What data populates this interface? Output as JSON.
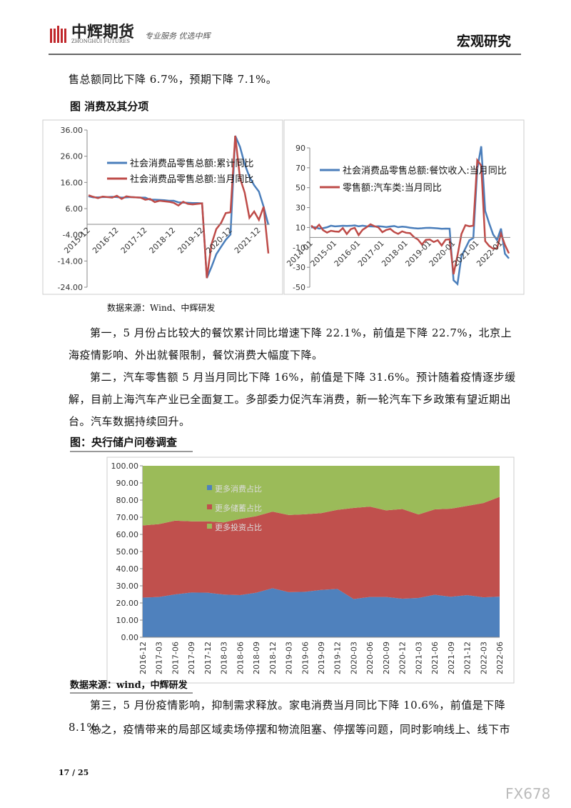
{
  "header": {
    "logo_cn": "中辉期货",
    "logo_en": "ZHONGHUI FUTURES",
    "slogan": "专业服务 优选中辉",
    "section": "宏观研究"
  },
  "paragraphs": [
    "售总额同比下降 6.7%，预期下降 7.1%。",
    "第一，5 月份占比较大的餐饮累计同比增速下降 22.1%，前值是下降 22.7%，北京上海疫情影响、外出就餐限制，餐饮消费大幅度下降。",
    "第二，汽车零售额 5 月当月同比下降 16%，前值是下降 31.6%。预计随着疫情逐步缓解，目前上海汽车产业已全面复工。多部委力促汽车消费，新一轮汽车下乡政策有望近期出台。汽车数据持续回升。",
    "第三，5 月份疫情影响，抑制需求释放。家电消费当月同比下降 10.6%，前值是下降 8.1%。",
    "总之，疫情带来的局部区域卖场停摆和物流阻塞、停摆等问题，同时影响线上、线下市"
  ],
  "figure1_title": "图  消费及其分项",
  "figure1_source": "数据来源：Wind、中辉研发",
  "figure2_title": "图：央行储户问卷调查",
  "figure2_source": "数据来源：wind，中辉研发",
  "footer": {
    "page": "17 / 25",
    "watermark": "FX678"
  },
  "chart_data": [
    {
      "type": "line",
      "categories": [
        "2015-12",
        null,
        null,
        null,
        null,
        null,
        "2016-12",
        null,
        null,
        null,
        null,
        null,
        "2017-12",
        null,
        null,
        null,
        null,
        null,
        "2018-12",
        null,
        null,
        null,
        null,
        null,
        "2019-12",
        null,
        null,
        null,
        null,
        null,
        "2020-12",
        null,
        null,
        null,
        null,
        null,
        "2021-12",
        null,
        null
      ],
      "series": [
        {
          "name": "社会消费品零售总额:累计同比",
          "color": "#4a7ebb",
          "values": [
            10.7,
            10.3,
            10.3,
            10.4,
            10.4,
            10.5,
            10.4,
            10.2,
            10.3,
            10.4,
            10.3,
            10.2,
            10.2,
            9.4,
            9.4,
            9.3,
            9.2,
            9.0,
            9.0,
            8.4,
            8.3,
            8.2,
            8.1,
            8.1,
            8.0,
            -20.5,
            -16.2,
            -11.4,
            -8.6,
            -5.9,
            -3.9,
            33.8,
            29.6,
            23.0,
            18.1,
            14.9,
            12.5,
            6.7,
            -0.2
          ]
        },
        {
          "name": "社会消费品零售总额:当月同比",
          "color": "#be4b48",
          "values": [
            11.1,
            10.5,
            10.0,
            10.6,
            10.4,
            10.2,
            10.9,
            9.7,
            10.7,
            10.4,
            10.3,
            10.2,
            9.4,
            9.7,
            8.5,
            9.0,
            8.8,
            8.6,
            8.2,
            7.2,
            8.6,
            7.8,
            7.6,
            7.8,
            8.0,
            -20.5,
            -7.5,
            -1.8,
            0.5,
            4.3,
            4.6,
            33.8,
            17.7,
            12.1,
            2.5,
            4.9,
            1.7,
            6.7,
            -11.1
          ]
        }
      ],
      "ylim": [
        -24,
        36
      ],
      "yticks": [
        {
          "value": -24,
          "label": "-24.00"
        },
        {
          "value": -14,
          "label": "-14.00"
        },
        {
          "value": -4,
          "label": "-4.00"
        },
        {
          "value": 6,
          "label": "6.00"
        },
        {
          "value": 16,
          "label": "16.00"
        },
        {
          "value": 26,
          "label": "26.00"
        },
        {
          "value": 36,
          "label": "36.00"
        }
      ]
    },
    {
      "type": "line",
      "categories": [
        "2014-01",
        null,
        null,
        null,
        null,
        null,
        "2015-01",
        null,
        null,
        null,
        null,
        null,
        "2016-01",
        null,
        null,
        null,
        null,
        null,
        "2017-01",
        null,
        null,
        null,
        null,
        null,
        "2018-01",
        null,
        null,
        null,
        null,
        null,
        "2019-01",
        null,
        null,
        null,
        null,
        null,
        "2020-01",
        null,
        null,
        null,
        null,
        null,
        "2021-01",
        null,
        null,
        null,
        null,
        null,
        "2022-01",
        null,
        null
      ],
      "series": [
        {
          "name": "社会消费品零售总额:餐饮收入:当月同比",
          "color": "#4a7ebb",
          "values": [
            10,
            10.3,
            8.9,
            9.3,
            10.2,
            11.8,
            11.1,
            11.4,
            11.7,
            11.6,
            11.7,
            12.1,
            11.2,
            11.8,
            11.2,
            11.1,
            10.9,
            11.3,
            10.9,
            10.4,
            11.0,
            11.5,
            10.3,
            10.8,
            10.5,
            9.8,
            9.3,
            9.0,
            9.2,
            9.6,
            9.7,
            9.4,
            9.1,
            8.7,
            8.9,
            8.8,
            -43,
            -46.8,
            -18.9,
            -11,
            -2.9,
            -0.6,
            68.9,
            91.6,
            26.6,
            14.3,
            3.1,
            -2.7,
            8.9,
            -16.4,
            -21.1
          ]
        },
        {
          "name": "零售额:汽车类:当月同比",
          "color": "#be4b48",
          "values": [
            12,
            8.6,
            12.8,
            7.3,
            4.9,
            6.7,
            6,
            5.7,
            9.4,
            3.5,
            8.3,
            9.7,
            2.4,
            7.7,
            10.2,
            13.2,
            11.3,
            10.1,
            5.3,
            7.6,
            8.6,
            5.4,
            3.6,
            6.1,
            4.7,
            4.3,
            0.3,
            -2.1,
            -7.1,
            -2.4,
            -2.1,
            -4.6,
            -2.8,
            -8.1,
            -2.3,
            -1.8,
            -37,
            -18.1,
            3.5,
            12.3,
            11.2,
            11.8,
            77.6,
            72.2,
            -3.7,
            -8.5,
            -11.3,
            -10.9,
            3.7,
            -7.5,
            -16.0
          ]
        }
      ],
      "ylim": [
        -50,
        90
      ],
      "yticks": [
        -50,
        -30,
        -10,
        10,
        30,
        50,
        70,
        90
      ]
    },
    {
      "type": "stacked-area",
      "categories": [
        "2016-12",
        "2017-03",
        "2017-06",
        "2017-09",
        "2017-12",
        "2018-03",
        "2018-06",
        "2018-09",
        "2018-12",
        "2019-03",
        "2019-06",
        "2019-09",
        "2019-12",
        "2020-03",
        "2020-06",
        "2020-09",
        "2020-12",
        "2021-03",
        "2021-06",
        "2021-09",
        "2021-12",
        "2022-03",
        "2022-06"
      ],
      "series": [
        {
          "name": "更多消费占比",
          "color": "#4f81bd",
          "values": [
            23.1,
            23.5,
            25.0,
            26.1,
            26.0,
            24.9,
            24.6,
            26.0,
            28.6,
            26.3,
            26.5,
            27.6,
            28.2,
            22.3,
            23.5,
            23.5,
            22.5,
            22.9,
            24.8,
            23.6,
            24.6,
            23.3,
            23.7
          ]
        },
        {
          "name": "更多储蓄占比",
          "color": "#c0504d",
          "values": [
            42.1,
            42.5,
            43.0,
            41.5,
            41.6,
            42.1,
            44.4,
            44.6,
            44.7,
            45.0,
            45.2,
            44.8,
            46.1,
            53.1,
            52.7,
            50.5,
            52.3,
            48.7,
            49.8,
            51.4,
            52.0,
            55.0,
            58.2
          ]
        },
        {
          "name": "更多投资占比",
          "color": "#9bbb59",
          "values": [
            34.8,
            34.0,
            32.0,
            32.4,
            32.4,
            33.0,
            31.0,
            29.4,
            26.7,
            28.7,
            28.3,
            27.6,
            25.7,
            24.6,
            23.8,
            26.0,
            25.2,
            28.4,
            25.4,
            25.0,
            23.4,
            21.7,
            18.1
          ]
        }
      ],
      "ylim": [
        0,
        100
      ],
      "yticks": [
        {
          "value": 0,
          "label": "0.00"
        },
        {
          "value": 10,
          "label": "10.00"
        },
        {
          "value": 20,
          "label": "20.00"
        },
        {
          "value": 30,
          "label": "30.00"
        },
        {
          "value": 40,
          "label": "40.00"
        },
        {
          "value": 50,
          "label": "50.00"
        },
        {
          "value": 60,
          "label": "60.00"
        },
        {
          "value": 70,
          "label": "70.00"
        },
        {
          "value": 80,
          "label": "80.00"
        },
        {
          "value": 90,
          "label": "90.00"
        },
        {
          "value": 100,
          "label": "100.00"
        }
      ]
    }
  ]
}
